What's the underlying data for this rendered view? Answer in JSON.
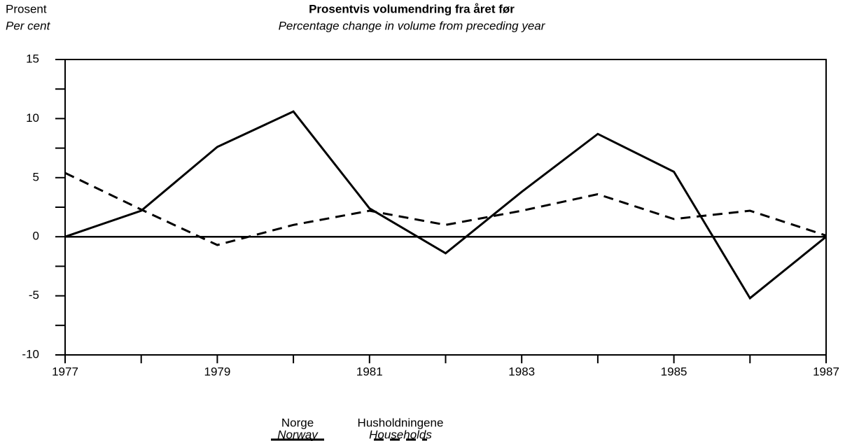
{
  "chart_data": {
    "type": "line",
    "title": "Prosentvis volumendring fra året før",
    "subtitle": "Percentage change in volume from preceding year",
    "y_label": "Prosent",
    "y_label_en": "Per cent",
    "x": [
      1977,
      1978,
      1979,
      1980,
      1981,
      1982,
      1983,
      1984,
      1985,
      1986,
      1987
    ],
    "series": [
      {
        "name": "Norge",
        "name_en": "Norway",
        "color": "#000000",
        "dash": "solid",
        "values": [
          0,
          2.2,
          7.6,
          10.6,
          2.4,
          -1.4,
          3.8,
          8.7,
          5.5,
          -5.2,
          0
        ]
      },
      {
        "name": "Husholdningene",
        "name_en": "Households",
        "color": "#000000",
        "dash": "dashed",
        "values": [
          5.4,
          2.3,
          -0.7,
          1.0,
          2.2,
          1.0,
          2.2,
          3.6,
          1.5,
          2.2,
          0.1
        ]
      }
    ],
    "xlim": [
      1977,
      1987
    ],
    "xticks": [
      1977,
      1979,
      1981,
      1983,
      1985,
      1987
    ],
    "xminor_ticks": [
      1978,
      1980,
      1982,
      1984,
      1986
    ],
    "ylim": [
      -10,
      15
    ],
    "yticks": [
      -10,
      -5,
      0,
      5,
      10,
      15
    ],
    "yminor_ticks": [
      -7.5,
      -2.5,
      2.5,
      7.5,
      12.5
    ],
    "zero_line": true,
    "legend": "bottom"
  }
}
